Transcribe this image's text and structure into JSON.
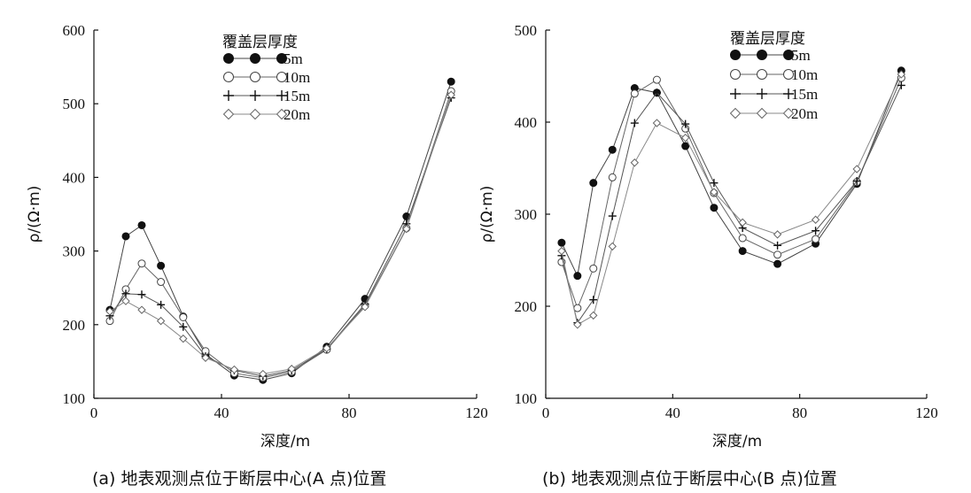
{
  "chart_data": [
    {
      "type": "line",
      "caption": "(a) 地表观测点位于断层中心(A 点)位置",
      "xlabel": "深度/m",
      "ylabel": "ρ/(Ω·m)",
      "xlim": [
        0,
        120
      ],
      "ylim": [
        100,
        600
      ],
      "xticks": [
        0,
        40,
        80,
        120
      ],
      "yticks": [
        100,
        200,
        300,
        400,
        500,
        600
      ],
      "grid": false,
      "legend": {
        "title": "覆盖层厚度",
        "placement": "top-center"
      },
      "series": [
        {
          "name": "5m",
          "marker": "filled-circle",
          "x": [
            5,
            10,
            15,
            21,
            28,
            35,
            44,
            53,
            62,
            73,
            85,
            98,
            112
          ],
          "y": [
            220,
            320,
            335,
            280,
            211,
            160,
            131,
            125,
            134,
            170,
            235,
            347,
            530
          ]
        },
        {
          "name": "10m",
          "marker": "open-circle",
          "x": [
            5,
            10,
            15,
            21,
            28,
            35,
            44,
            53,
            62,
            73,
            85,
            98,
            112
          ],
          "y": [
            205,
            248,
            283,
            258,
            210,
            164,
            134,
            128,
            136,
            166,
            226,
            331,
            517
          ]
        },
        {
          "name": "15m",
          "marker": "plus",
          "x": [
            5,
            10,
            15,
            21,
            28,
            35,
            44,
            53,
            62,
            73,
            85,
            98,
            112
          ],
          "y": [
            212,
            242,
            241,
            227,
            197,
            157,
            138,
            130,
            138,
            167,
            228,
            337,
            508
          ]
        },
        {
          "name": "20m",
          "marker": "open-diamond",
          "x": [
            5,
            10,
            15,
            21,
            28,
            35,
            44,
            53,
            62,
            73,
            85,
            98,
            112
          ],
          "y": [
            218,
            232,
            220,
            205,
            181,
            155,
            139,
            133,
            140,
            168,
            224,
            330,
            512
          ]
        }
      ]
    },
    {
      "type": "line",
      "caption": "(b) 地表观测点位于断层中心(B 点)位置",
      "xlabel": "深度/m",
      "ylabel": "ρ/(Ω·m)",
      "xlim": [
        0,
        120
      ],
      "ylim": [
        100,
        500
      ],
      "xticks": [
        0,
        40,
        80,
        120
      ],
      "yticks": [
        100,
        200,
        300,
        400,
        500
      ],
      "grid": false,
      "legend": {
        "title": "覆盖层厚度",
        "placement": "top-center"
      },
      "series": [
        {
          "name": "5m",
          "marker": "filled-circle",
          "x": [
            5,
            10,
            15,
            21,
            28,
            35,
            44,
            53,
            62,
            73,
            85,
            98,
            112
          ],
          "y": [
            269,
            233,
            334,
            370,
            437,
            432,
            374,
            307,
            260,
            246,
            268,
            333,
            456
          ]
        },
        {
          "name": "10m",
          "marker": "open-circle",
          "x": [
            5,
            10,
            15,
            21,
            28,
            35,
            44,
            53,
            62,
            73,
            85,
            98,
            112
          ],
          "y": [
            248,
            198,
            241,
            340,
            431,
            446,
            393,
            323,
            274,
            256,
            273,
            335,
            448
          ]
        },
        {
          "name": "15m",
          "marker": "plus",
          "x": [
            5,
            10,
            15,
            21,
            28,
            35,
            44,
            53,
            62,
            73,
            85,
            98,
            112
          ],
          "y": [
            255,
            182,
            207,
            298,
            399,
            432,
            398,
            334,
            285,
            266,
            282,
            336,
            440
          ]
        },
        {
          "name": "20m",
          "marker": "open-diamond",
          "x": [
            5,
            10,
            15,
            21,
            28,
            35,
            44,
            53,
            62,
            73,
            85,
            98,
            112
          ],
          "y": [
            260,
            180,
            190,
            265,
            356,
            399,
            383,
            324,
            291,
            278,
            294,
            349,
            452
          ]
        }
      ]
    }
  ]
}
